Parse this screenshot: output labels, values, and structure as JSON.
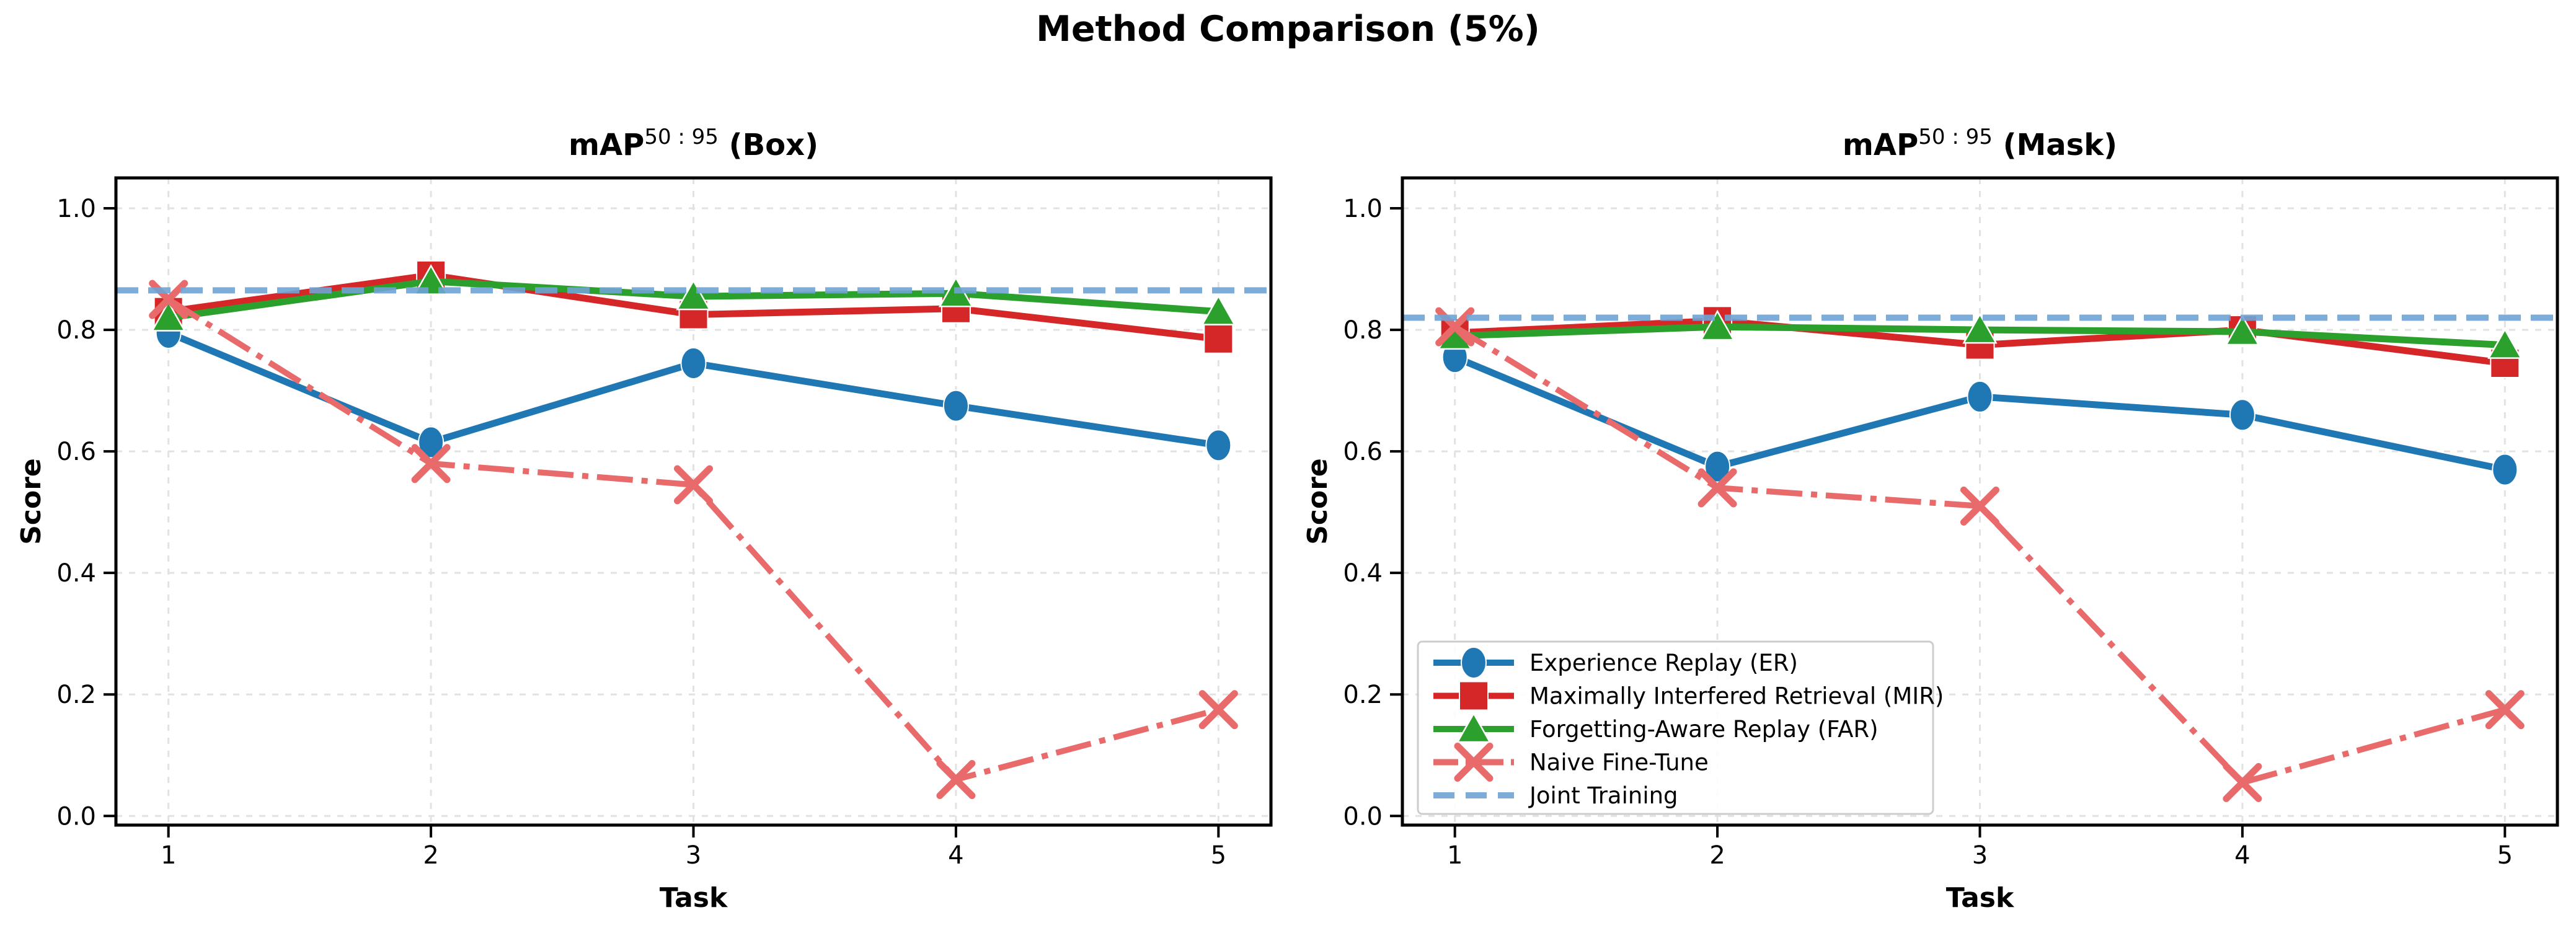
{
  "figure": {
    "title": "Method Comparison (5%)"
  },
  "colors": {
    "er": "#1f77b4",
    "mir": "#d62728",
    "far": "#2ca02c",
    "naive": "#e96a6a",
    "joint": "#6fa4d4",
    "grid": "#e2e2e2",
    "axis": "#000000",
    "text": "#000000",
    "legend_border": "#c9c9c9",
    "legend_fill": "#ffffff"
  },
  "chart_data": [
    {
      "type": "line",
      "title_main": "mAP",
      "title_sup": "50 : 95",
      "title_tail": " (Box)",
      "xlabel": "Task",
      "ylabel": "Score",
      "x": [
        1,
        2,
        3,
        4,
        5
      ],
      "xtick_labels": [
        "1",
        "2",
        "3",
        "4",
        "5"
      ],
      "ytick_values": [
        0.0,
        0.2,
        0.4,
        0.6,
        0.8,
        1.0
      ],
      "ytick_labels": [
        "0.0",
        "0.2",
        "0.4",
        "0.6",
        "0.8",
        "1.0"
      ],
      "xlim": [
        0.8,
        5.2
      ],
      "ylim": [
        -0.015,
        1.05
      ],
      "grid": true,
      "legend": false,
      "series": [
        {
          "name": "Experience Replay (ER)",
          "color_key": "er",
          "marker": "circle",
          "linestyle": "solid",
          "values": [
            0.795,
            0.615,
            0.745,
            0.675,
            0.61
          ]
        },
        {
          "name": "Maximally Interfered Retrieval (MIR)",
          "color_key": "mir",
          "marker": "square",
          "linestyle": "solid",
          "values": [
            0.83,
            0.89,
            0.825,
            0.835,
            0.785
          ]
        },
        {
          "name": "Forgetting-Aware Replay (FAR)",
          "color_key": "far",
          "marker": "triangle",
          "linestyle": "solid",
          "values": [
            0.82,
            0.88,
            0.855,
            0.86,
            0.83
          ]
        },
        {
          "name": "Naive Fine-Tune",
          "color_key": "naive",
          "marker": "x",
          "linestyle": "dashdot",
          "values": [
            0.85,
            0.58,
            0.545,
            0.06,
            0.175
          ]
        }
      ],
      "hline": {
        "name": "Joint Training",
        "color_key": "joint",
        "linestyle": "dashed",
        "value": 0.865
      }
    },
    {
      "type": "line",
      "title_main": "mAP",
      "title_sup": "50 : 95",
      "title_tail": " (Mask)",
      "xlabel": "Task",
      "ylabel": "Score",
      "x": [
        1,
        2,
        3,
        4,
        5
      ],
      "xtick_labels": [
        "1",
        "2",
        "3",
        "4",
        "5"
      ],
      "ytick_values": [
        0.0,
        0.2,
        0.4,
        0.6,
        0.8,
        1.0
      ],
      "ytick_labels": [
        "0.0",
        "0.2",
        "0.4",
        "0.6",
        "0.8",
        "1.0"
      ],
      "xlim": [
        0.8,
        5.2
      ],
      "ylim": [
        -0.015,
        1.05
      ],
      "grid": true,
      "legend": true,
      "series": [
        {
          "name": "Experience Replay (ER)",
          "color_key": "er",
          "marker": "circle",
          "linestyle": "solid",
          "values": [
            0.755,
            0.575,
            0.69,
            0.66,
            0.57
          ]
        },
        {
          "name": "Maximally Interfered Retrieval (MIR)",
          "color_key": "mir",
          "marker": "square",
          "linestyle": "solid",
          "values": [
            0.795,
            0.815,
            0.775,
            0.8,
            0.745
          ]
        },
        {
          "name": "Forgetting-Aware Replay (FAR)",
          "color_key": "far",
          "marker": "triangle",
          "linestyle": "solid",
          "values": [
            0.79,
            0.805,
            0.8,
            0.797,
            0.775
          ]
        },
        {
          "name": "Naive Fine-Tune",
          "color_key": "naive",
          "marker": "x",
          "linestyle": "dashdot",
          "values": [
            0.805,
            0.54,
            0.51,
            0.055,
            0.175
          ]
        }
      ],
      "hline": {
        "name": "Joint Training",
        "color_key": "joint",
        "linestyle": "dashed",
        "value": 0.82
      }
    }
  ]
}
